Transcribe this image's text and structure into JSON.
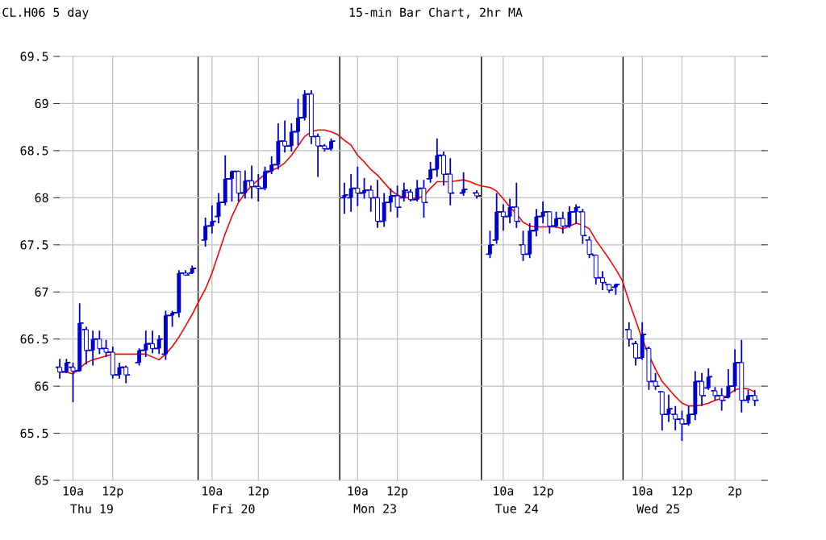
{
  "chart_data": {
    "type": "candlestick",
    "title": "15-min Bar Chart, 2hr MA",
    "subtitle": "CL.H06 5 day",
    "annotations": [
      "Thu 19",
      "Fri 20",
      "Mon 23",
      "Tue 24",
      "Wed 25"
    ],
    "color": "#0000cc",
    "categories": [
      null,
      null,
      "10a",
      null,
      null,
      null,
      null,
      null,
      "12p",
      null,
      null,
      null,
      null,
      null,
      null,
      null,
      null,
      null,
      null,
      null,
      null,
      null,
      null,
      "10a",
      null,
      null,
      null,
      null,
      null,
      null,
      "12p",
      null,
      null,
      null,
      null,
      null,
      null,
      null,
      null,
      null,
      null,
      null,
      null,
      null,
      null,
      "10a",
      null,
      null,
      null,
      null,
      null,
      "12p",
      null,
      null,
      null,
      null,
      null,
      null,
      null,
      null,
      null,
      null,
      null,
      null,
      null,
      null,
      null,
      "10a",
      null,
      null,
      null,
      null,
      null,
      "12p",
      null,
      null,
      null,
      null,
      null,
      null,
      null,
      null,
      null,
      null,
      null,
      null,
      null,
      null,
      "10a",
      null,
      null,
      null,
      null,
      null,
      "12p",
      null,
      null,
      null,
      null,
      null,
      null,
      null,
      "2p",
      null,
      null,
      null,
      null
    ],
    "ohlc": [
      [
        66.2,
        66.29,
        66.08,
        66.15
      ],
      [
        66.15,
        66.29,
        66.14,
        66.25
      ],
      [
        66.2,
        66.25,
        65.83,
        66.16
      ],
      [
        66.16,
        66.88,
        66.16,
        66.67
      ],
      [
        66.6,
        66.63,
        66.23,
        66.38
      ],
      [
        66.38,
        66.59,
        66.22,
        66.5
      ],
      [
        66.5,
        66.59,
        66.34,
        66.4
      ],
      [
        66.4,
        66.49,
        66.31,
        66.36
      ],
      [
        66.36,
        66.42,
        66.08,
        66.12
      ],
      [
        66.12,
        66.25,
        66.08,
        66.2
      ],
      [
        66.2,
        66.22,
        66.03,
        66.12
      ],
      null,
      [
        66.25,
        66.4,
        66.22,
        66.38
      ],
      [
        66.38,
        66.59,
        66.31,
        66.45
      ],
      [
        66.45,
        66.59,
        66.35,
        66.4
      ],
      [
        66.4,
        66.54,
        66.34,
        66.5
      ],
      [
        66.34,
        66.8,
        66.28,
        66.75
      ],
      [
        66.75,
        66.8,
        66.63,
        66.78
      ],
      [
        66.78,
        67.23,
        66.73,
        67.2
      ],
      [
        67.2,
        67.23,
        67.17,
        67.18
      ],
      [
        67.2,
        67.28,
        67.19,
        67.25
      ],
      null,
      [
        67.55,
        67.79,
        67.48,
        67.7
      ],
      [
        67.7,
        67.92,
        67.62,
        67.75
      ],
      [
        67.8,
        68.05,
        67.73,
        67.95
      ],
      [
        67.95,
        68.45,
        67.92,
        68.2
      ],
      [
        68.2,
        68.29,
        67.96,
        68.28
      ],
      [
        68.28,
        68.29,
        67.96,
        68.05
      ],
      [
        68.05,
        68.29,
        67.99,
        68.18
      ],
      [
        68.18,
        68.34,
        67.99,
        68.12
      ],
      [
        68.12,
        68.25,
        67.96,
        68.1
      ],
      [
        68.1,
        68.33,
        68.08,
        68.28
      ],
      [
        68.28,
        68.44,
        68.25,
        68.35
      ],
      [
        68.35,
        68.79,
        68.3,
        68.6
      ],
      [
        68.6,
        68.82,
        68.48,
        68.55
      ],
      [
        68.55,
        68.79,
        68.49,
        68.7
      ],
      [
        68.7,
        69.05,
        68.56,
        68.85
      ],
      [
        68.85,
        69.14,
        68.82,
        69.1
      ],
      [
        69.1,
        69.14,
        68.57,
        68.65
      ],
      [
        68.65,
        68.68,
        68.22,
        68.55
      ],
      [
        68.55,
        68.57,
        68.49,
        68.52
      ],
      [
        68.52,
        68.63,
        68.5,
        68.6
      ],
      null,
      [
        68.0,
        68.16,
        67.83,
        68.03
      ],
      [
        68.0,
        68.25,
        67.85,
        68.1
      ],
      [
        68.1,
        68.33,
        67.91,
        68.05
      ],
      [
        68.05,
        68.21,
        67.99,
        68.08
      ],
      [
        68.08,
        68.13,
        67.85,
        68.0
      ],
      [
        68.0,
        68.19,
        67.68,
        67.75
      ],
      [
        67.75,
        68.05,
        67.69,
        67.95
      ],
      [
        67.95,
        68.1,
        67.85,
        68.02
      ],
      [
        68.02,
        68.13,
        67.79,
        67.9
      ],
      [
        68.0,
        68.16,
        67.96,
        68.08
      ],
      [
        68.06,
        68.09,
        67.96,
        67.98
      ],
      [
        67.98,
        68.19,
        67.96,
        68.1
      ],
      [
        68.1,
        68.19,
        67.79,
        67.95
      ],
      [
        68.2,
        68.38,
        68.16,
        68.3
      ],
      [
        68.3,
        68.63,
        68.22,
        68.45
      ],
      [
        68.45,
        68.49,
        68.13,
        68.25
      ],
      [
        68.25,
        68.42,
        67.92,
        68.05
      ],
      null,
      [
        68.05,
        68.27,
        68.02,
        68.09
      ],
      null,
      [
        68.05,
        68.08,
        67.99,
        68.02
      ],
      null,
      [
        67.4,
        67.65,
        67.36,
        67.5
      ],
      [
        67.55,
        68.05,
        67.51,
        67.85
      ],
      [
        67.85,
        67.93,
        67.65,
        67.8
      ],
      [
        67.8,
        67.99,
        67.73,
        67.9
      ],
      [
        67.9,
        68.16,
        67.68,
        67.75
      ],
      [
        67.5,
        67.65,
        67.33,
        67.4
      ],
      [
        67.4,
        67.73,
        67.36,
        67.65
      ],
      [
        67.65,
        67.88,
        67.59,
        67.8
      ],
      [
        67.8,
        67.96,
        67.73,
        67.85
      ],
      [
        67.85,
        67.85,
        67.62,
        67.7
      ],
      [
        67.7,
        67.85,
        67.68,
        67.78
      ],
      [
        67.78,
        67.85,
        67.62,
        67.7
      ],
      [
        67.7,
        67.91,
        67.68,
        67.85
      ],
      [
        67.85,
        67.93,
        67.73,
        67.9
      ],
      [
        67.85,
        67.88,
        67.51,
        67.6
      ],
      [
        67.55,
        67.59,
        67.36,
        67.4
      ],
      [
        67.39,
        67.39,
        67.08,
        67.15
      ],
      [
        67.15,
        67.22,
        67.02,
        67.1
      ],
      [
        67.08,
        67.08,
        66.99,
        67.02
      ],
      [
        67.05,
        67.09,
        66.97,
        67.08
      ],
      null,
      [
        66.6,
        66.68,
        66.42,
        66.5
      ],
      [
        66.45,
        66.48,
        66.22,
        66.3
      ],
      [
        66.3,
        66.68,
        66.28,
        66.55
      ],
      [
        66.4,
        66.42,
        65.96,
        66.05
      ],
      [
        66.05,
        66.14,
        65.96,
        66.0
      ],
      [
        65.94,
        65.94,
        65.53,
        65.7
      ],
      [
        65.7,
        65.91,
        65.62,
        65.76
      ],
      [
        65.7,
        65.79,
        65.53,
        65.65
      ],
      [
        65.65,
        65.74,
        65.42,
        65.6
      ],
      [
        65.6,
        65.79,
        65.58,
        65.7
      ],
      [
        65.7,
        66.16,
        65.64,
        66.05
      ],
      [
        66.05,
        66.14,
        65.79,
        65.9
      ],
      [
        65.98,
        66.19,
        65.96,
        66.1
      ],
      [
        65.95,
        65.99,
        65.85,
        65.9
      ],
      [
        65.9,
        65.98,
        65.74,
        65.85
      ],
      [
        65.88,
        66.18,
        65.87,
        66.0
      ],
      [
        66.0,
        66.39,
        65.94,
        66.25
      ],
      [
        66.25,
        66.49,
        65.72,
        65.85
      ],
      [
        65.85,
        65.96,
        65.82,
        65.9
      ],
      [
        65.9,
        65.96,
        65.79,
        65.85
      ],
      null
    ],
    "series": [
      {
        "type": "line",
        "color": "#ff0000",
        "values": [
          66.16,
          66.15,
          66.13,
          66.19,
          66.25,
          66.28,
          66.3,
          66.32,
          66.34,
          66.34,
          66.34,
          66.34,
          66.34,
          66.34,
          66.31,
          66.28,
          66.34,
          66.42,
          66.52,
          66.64,
          66.76,
          66.9,
          67.03,
          67.2,
          67.41,
          67.62,
          67.8,
          67.95,
          68.05,
          68.13,
          68.19,
          68.25,
          68.29,
          68.32,
          68.37,
          68.45,
          68.55,
          68.65,
          68.7,
          68.72,
          68.72,
          68.7,
          68.67,
          68.61,
          68.56,
          68.45,
          68.38,
          68.3,
          68.24,
          68.16,
          68.08,
          68.03,
          68.0,
          68.0,
          67.99,
          68.02,
          68.1,
          68.17,
          68.17,
          68.17,
          68.18,
          68.19,
          68.17,
          68.14,
          68.12,
          68.11,
          68.07,
          67.99,
          67.9,
          67.83,
          67.74,
          67.7,
          67.69,
          67.69,
          67.69,
          67.69,
          67.67,
          67.7,
          67.73,
          67.71,
          67.67,
          67.55,
          67.45,
          67.35,
          67.24,
          67.12,
          66.9,
          66.7,
          66.5,
          66.33,
          66.18,
          66.05,
          65.97,
          65.89,
          65.82,
          65.79,
          65.79,
          65.8,
          65.82,
          65.85,
          65.87,
          65.91,
          65.96,
          65.98,
          65.97,
          65.94,
          null
        ]
      }
    ],
    "ylim": [
      65,
      69.5
    ],
    "yticks": [
      65,
      65.5,
      66,
      66.5,
      67,
      67.5,
      68,
      68.5,
      69,
      69.5
    ],
    "grid": true
  }
}
